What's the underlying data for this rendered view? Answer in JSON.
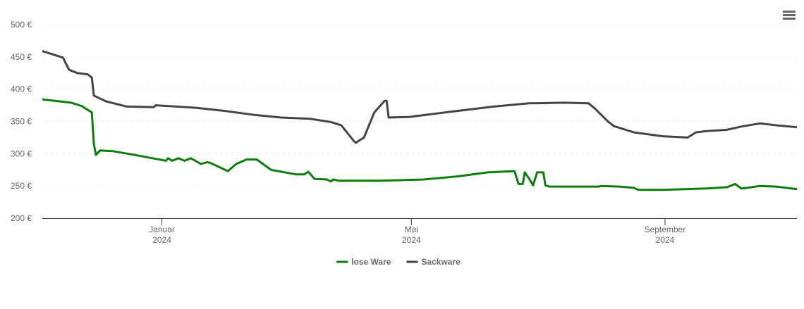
{
  "chart_data": {
    "type": "line",
    "xlim": [
      -58,
      308
    ],
    "xticks": [
      {
        "value": 0,
        "label": "Januar 2024"
      },
      {
        "value": 121,
        "label": "Mai 2024"
      },
      {
        "value": 244,
        "label": "September 2024"
      }
    ],
    "ylim": [
      200,
      500
    ],
    "yticks": [
      {
        "value": 200,
        "label": "200 €"
      },
      {
        "value": 250,
        "label": "250 €"
      },
      {
        "value": 300,
        "label": "300 €"
      },
      {
        "value": 350,
        "label": "350 €"
      },
      {
        "value": 400,
        "label": "400 €"
      },
      {
        "value": 450,
        "label": "450 €"
      },
      {
        "value": 500,
        "label": "500 €"
      }
    ],
    "grid": true,
    "legend": "bottom",
    "series": [
      {
        "name": "lose Ware",
        "color": "#0d7d0d",
        "x": [
          -58,
          -44,
          -39,
          -34,
          -33,
          -32,
          -30,
          -24,
          -13,
          -3,
          2,
          3,
          5,
          8,
          11,
          14,
          19,
          22,
          24,
          32,
          36,
          41,
          46,
          53,
          58,
          65,
          69,
          71,
          74,
          80,
          82,
          83,
          86,
          106,
          127,
          144,
          158,
          171,
          173,
          175,
          176,
          178,
          180,
          182,
          185,
          186,
          188,
          212,
          213,
          222,
          229,
          231,
          243,
          264,
          274,
          278,
          281,
          284,
          290,
          298,
          308
        ],
        "values": [
          384,
          379,
          374,
          364,
          315,
          298,
          305,
          304,
          298,
          292,
          289,
          293,
          289,
          293,
          289,
          293,
          284,
          287,
          285,
          273,
          284,
          291,
          291,
          275,
          272,
          268,
          268,
          272,
          261,
          260,
          257,
          260,
          258,
          258,
          260,
          265,
          271,
          273,
          253,
          253,
          271,
          262,
          251,
          271,
          271,
          251,
          249,
          249,
          250,
          249,
          247,
          244,
          244,
          246,
          248,
          253,
          246,
          247,
          250,
          249,
          245
        ]
      },
      {
        "name": "Sackware",
        "color": "#434348",
        "x": [
          -58,
          -48,
          -45,
          -41,
          -36,
          -34,
          -33,
          -27,
          -17,
          -4,
          -3,
          7,
          17,
          31,
          45,
          58,
          72,
          82,
          87,
          93,
          94,
          98,
          103,
          108,
          109,
          110,
          120,
          140,
          161,
          178,
          195,
          207,
          210,
          216,
          219,
          229,
          243,
          255,
          259,
          264,
          274,
          281,
          290,
          298,
          308
        ],
        "values": [
          459,
          449,
          430,
          425,
          423,
          418,
          390,
          381,
          373,
          372,
          375,
          373,
          371,
          366,
          360,
          356,
          354,
          349,
          344,
          320,
          317,
          325,
          364,
          382,
          382,
          356,
          357,
          365,
          373,
          378,
          379,
          378,
          370,
          351,
          343,
          333,
          327,
          325,
          333,
          335,
          337,
          342,
          347,
          344,
          341
        ]
      }
    ]
  }
}
